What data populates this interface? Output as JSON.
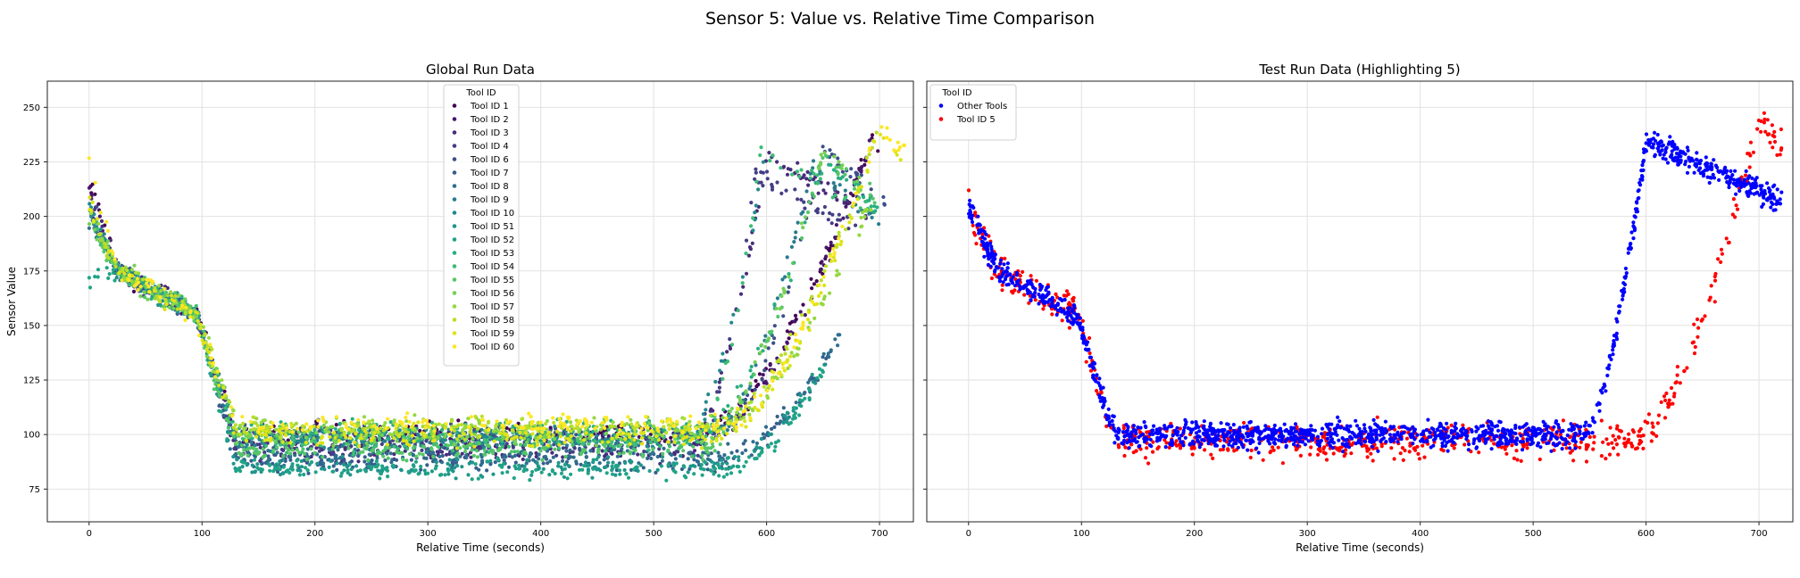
{
  "figure": {
    "title": "Sensor 5: Value vs. Relative Time Comparison"
  },
  "chart_data": [
    {
      "type": "scatter",
      "title": "Global Run Data",
      "xlabel": "Relative Time (seconds)",
      "ylabel": "Sensor Value",
      "xlim": [
        -37,
        730
      ],
      "ylim": [
        60,
        262
      ],
      "xticks": [
        0,
        100,
        200,
        300,
        400,
        500,
        600,
        700
      ],
      "yticks": [
        75,
        100,
        125,
        150,
        175,
        200,
        225,
        250
      ],
      "grid": true,
      "legend": {
        "title": "Tool ID",
        "placement": "upper-center",
        "entries": [
          {
            "name": "Tool ID 1",
            "color": "#440154"
          },
          {
            "name": "Tool ID 2",
            "color": "#46186d"
          },
          {
            "name": "Tool ID 3",
            "color": "#472c7a"
          },
          {
            "name": "Tool ID 4",
            "color": "#433e85"
          },
          {
            "name": "Tool ID 6",
            "color": "#3c4f8a"
          },
          {
            "name": "Tool ID 7",
            "color": "#355f8d"
          },
          {
            "name": "Tool ID 8",
            "color": "#2e6e8e"
          },
          {
            "name": "Tool ID 9",
            "color": "#297b8e"
          },
          {
            "name": "Tool ID 10",
            "color": "#23898e"
          },
          {
            "name": "Tool ID 51",
            "color": "#1f968b"
          },
          {
            "name": "Tool ID 52",
            "color": "#20a386"
          },
          {
            "name": "Tool ID 53",
            "color": "#29af7f"
          },
          {
            "name": "Tool ID 54",
            "color": "#3dbc74"
          },
          {
            "name": "Tool ID 55",
            "color": "#56c667"
          },
          {
            "name": "Tool ID 56",
            "color": "#75d054"
          },
          {
            "name": "Tool ID 57",
            "color": "#95d840"
          },
          {
            "name": "Tool ID 58",
            "color": "#bade28"
          },
          {
            "name": "Tool ID 59",
            "color": "#dde318"
          },
          {
            "name": "Tool ID 60",
            "color": "#fde725"
          }
        ]
      },
      "series_profiles": [
        {
          "name": "Tool ID 1",
          "start": 218,
          "low": 101,
          "end_time": 700,
          "rise_start": 540,
          "peak": 236,
          "peak_time": 695
        },
        {
          "name": "Tool ID 2",
          "start": 212,
          "low": 98,
          "end_time": 695,
          "rise_start": 545,
          "peak": 232,
          "peak_time": 690
        },
        {
          "name": "Tool ID 3",
          "start": 210,
          "low": 92,
          "end_time": 690,
          "rise_start": 530,
          "peak": 228,
          "peak_time": 600
        },
        {
          "name": "Tool ID 4",
          "start": 205,
          "low": 95,
          "end_time": 680,
          "rise_start": 540,
          "peak": 220,
          "peak_time": 590
        },
        {
          "name": "Tool ID 6",
          "start": 208,
          "low": 100,
          "end_time": 705,
          "rise_start": 560,
          "peak": 230,
          "peak_time": 650
        },
        {
          "name": "Tool ID 7",
          "start": 200,
          "low": 88,
          "end_time": 660,
          "rise_start": 560,
          "peak": 140,
          "peak_time": 660
        },
        {
          "name": "Tool ID 8",
          "start": 195,
          "low": 90,
          "end_time": 665,
          "rise_start": 565,
          "peak": 145,
          "peak_time": 665
        },
        {
          "name": "Tool ID 9",
          "start": 206,
          "low": 97,
          "end_time": 700,
          "rise_start": 550,
          "peak": 222,
          "peak_time": 640
        },
        {
          "name": "Tool ID 10",
          "start": 204,
          "low": 99,
          "end_time": 610,
          "rise_start": 530,
          "peak": 232,
          "peak_time": 600
        },
        {
          "name": "Tool ID 51",
          "start": 200,
          "low": 85,
          "end_time": 660,
          "rise_start": 555,
          "peak": 138,
          "peak_time": 660
        },
        {
          "name": "Tool ID 52",
          "start": 172,
          "low": 84,
          "end_time": 655,
          "rise_start": 570,
          "peak": 135,
          "peak_time": 655
        },
        {
          "name": "Tool ID 53",
          "start": 198,
          "low": 102,
          "end_time": 700,
          "rise_start": 545,
          "peak": 225,
          "peak_time": 650
        },
        {
          "name": "Tool ID 54",
          "start": 202,
          "low": 96,
          "end_time": 690,
          "rise_start": 540,
          "peak": 230,
          "peak_time": 595
        },
        {
          "name": "Tool ID 55",
          "start": 196,
          "low": 93,
          "end_time": 700,
          "rise_start": 545,
          "peak": 228,
          "peak_time": 650
        },
        {
          "name": "Tool ID 56",
          "start": 199,
          "low": 100,
          "end_time": 690,
          "rise_start": 550,
          "peak": 231,
          "peak_time": 650
        },
        {
          "name": "Tool ID 57",
          "start": 203,
          "low": 104,
          "end_time": 700,
          "rise_start": 560,
          "peak": 205,
          "peak_time": 690
        },
        {
          "name": "Tool ID 58",
          "start": 200,
          "low": 103,
          "end_time": 710,
          "rise_start": 555,
          "peak": 240,
          "peak_time": 700
        },
        {
          "name": "Tool ID 59",
          "start": 207,
          "low": 99,
          "end_time": 720,
          "rise_start": 560,
          "peak": 238,
          "peak_time": 700
        },
        {
          "name": "Tool ID 60",
          "start": 228,
          "low": 105,
          "end_time": 725,
          "rise_start": 565,
          "peak": 243,
          "peak_time": 700
        }
      ]
    },
    {
      "type": "scatter",
      "title": "Test Run Data (Highlighting 5)",
      "xlabel": "Relative Time (seconds)",
      "ylabel": "",
      "xlim": [
        -37,
        730
      ],
      "ylim": [
        60,
        262
      ],
      "xticks": [
        0,
        100,
        200,
        300,
        400,
        500,
        600,
        700
      ],
      "yticks": [
        75,
        100,
        125,
        150,
        175,
        200,
        225,
        250
      ],
      "shared_y": true,
      "grid": true,
      "legend": {
        "title": "Tool ID",
        "placement": "upper-left",
        "entries": [
          {
            "name": "Other Tools",
            "color": "#0000ff"
          },
          {
            "name": "Tool ID 5",
            "color": "#ff0000"
          }
        ]
      },
      "series_profiles": [
        {
          "name": "Tool ID 5",
          "start": 205,
          "low": 97,
          "end_time": 720,
          "rise_start": 590,
          "peak": 245,
          "peak_time": 700,
          "spread": 14
        },
        {
          "name": "Other Tools",
          "start": 205,
          "low": 100,
          "end_time": 720,
          "rise_start": 545,
          "peak": 235,
          "peak_time": 600,
          "spread": 10
        }
      ]
    }
  ]
}
